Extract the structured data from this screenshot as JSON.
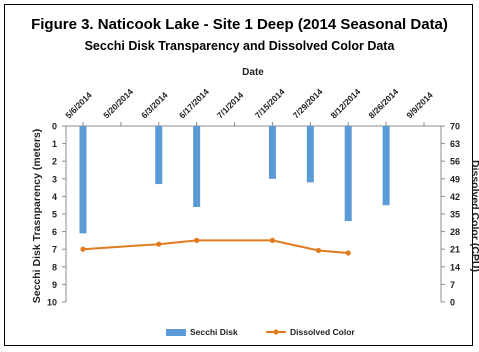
{
  "chart_data": {
    "type": "bar",
    "title": "Figure 3. Naticook Lake - Site 1 Deep (2014 Seasonal Data)",
    "subtitle": "Secchi Disk Transparency and Dissolved Color Data",
    "xlabel": "Date",
    "ylabel": "Secchi Disk Trasnparency (meters)",
    "y2label": "Dissolved Color (CPU)",
    "x_ticks": [
      "5/6/2014",
      "5/20/2014",
      "6/3/2014",
      "6/17/2014",
      "7/1/2014",
      "7/15/2014",
      "7/29/2014",
      "8/12/2014",
      "8/26/2014",
      "9/9/2014"
    ],
    "ylim": [
      0,
      10
    ],
    "y_inverted": true,
    "y_ticks": [
      0,
      1,
      2,
      3,
      4,
      5,
      6,
      7,
      8,
      9,
      10
    ],
    "y2lim": [
      0,
      70
    ],
    "y2_ticks": [
      0,
      7,
      14,
      21,
      28,
      35,
      42,
      49,
      56,
      63,
      70
    ],
    "legend_position": "bottom",
    "series": [
      {
        "name": "Secchi Disk",
        "kind": "bar",
        "axis": "left",
        "color": "#5b9bd5",
        "points": [
          {
            "x": "2014-05-06",
            "y": 6.1
          },
          {
            "x": "2014-06-03",
            "y": 3.3
          },
          {
            "x": "2014-06-17",
            "y": 4.6
          },
          {
            "x": "2014-07-15",
            "y": 3.0
          },
          {
            "x": "2014-07-29",
            "y": 3.2
          },
          {
            "x": "2014-08-12",
            "y": 5.4
          },
          {
            "x": "2014-08-26",
            "y": 4.5
          }
        ]
      },
      {
        "name": "Dissolved Color",
        "kind": "line",
        "axis": "right",
        "color": "#e07b20",
        "points": [
          {
            "x": "2014-05-06",
            "y": 21
          },
          {
            "x": "2014-06-03",
            "y": 23
          },
          {
            "x": "2014-06-17",
            "y": 24.5
          },
          {
            "x": "2014-07-15",
            "y": 24.5
          },
          {
            "x": "2014-08-01",
            "y": 20.5
          },
          {
            "x": "2014-08-12",
            "y": 19.5
          }
        ]
      }
    ]
  }
}
